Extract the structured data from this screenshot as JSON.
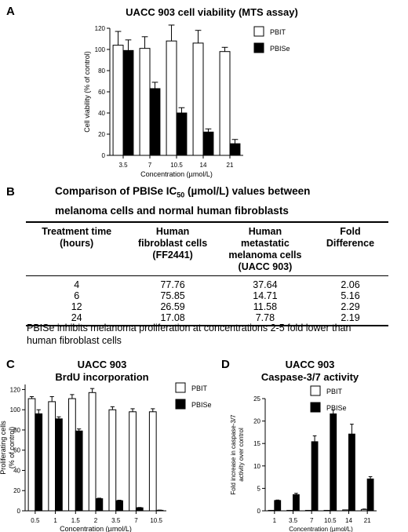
{
  "panels": {
    "A": {
      "letter": "A",
      "title": "UACC 903 cell viability (MTS assay)"
    },
    "B": {
      "letter": "B",
      "title_line1_pre": "Comparison of PBISe IC",
      "title_sub": "50",
      "title_line1_post": " (µmol/L) values between",
      "title_line2": "melanoma cells and normal human fibroblasts"
    },
    "C": {
      "letter": "C",
      "title_line1": "UACC 903",
      "title_line2": "BrdU incorporation"
    },
    "D": {
      "letter": "D",
      "title_line1": "UACC 903",
      "title_line2": "Caspase-3/7 activity"
    }
  },
  "table": {
    "headers": [
      [
        "Treatment time",
        "(hours)"
      ],
      [
        "Human",
        "fibroblast cells",
        "(FF2441)"
      ],
      [
        "Human",
        "metastatic",
        "melanoma cells",
        "(UACC 903)"
      ],
      [
        "Fold",
        "Difference"
      ]
    ],
    "rows": [
      [
        "4",
        "77.76",
        "37.64",
        "2.06"
      ],
      [
        "6",
        "75.85",
        "14.71",
        "5.16"
      ],
      [
        "12",
        "26.59",
        "11.58",
        "2.29"
      ],
      [
        "24",
        "17.08",
        "7.78",
        "2.19"
      ]
    ],
    "note": "PBISe inhibits melanoma proliferation at concentrations 2-5 fold lower than human fibroblast cells"
  },
  "colors": {
    "pbit": "#ffffff",
    "pbise": "#000000",
    "axis": "#000000"
  },
  "chart_data": [
    {
      "id": "A",
      "type": "bar",
      "categories": [
        "3.5",
        "7",
        "10.5",
        "14",
        "21"
      ],
      "series": [
        {
          "name": "PBIT",
          "values": [
            104,
            101,
            108,
            106,
            98
          ],
          "errors": [
            13,
            11,
            15,
            12,
            4
          ]
        },
        {
          "name": "PBISe",
          "values": [
            99,
            63,
            40,
            22,
            11
          ],
          "errors": [
            10,
            6,
            5,
            3,
            4
          ]
        }
      ],
      "xlabel": "Concentration (µmol/L)",
      "ylabel": "Cell viability (% of control)",
      "ylim": [
        0,
        120
      ],
      "yticks": [
        0,
        20,
        40,
        60,
        80,
        100,
        120
      ],
      "legend": "top-right",
      "grid": false
    },
    {
      "id": "C",
      "type": "bar",
      "categories": [
        "0.5",
        "1",
        "1.5",
        "2",
        "3.5",
        "7",
        "10.5"
      ],
      "series": [
        {
          "name": "PBIT",
          "values": [
            111,
            108,
            111,
            117,
            100,
            98,
            98
          ],
          "errors": [
            2,
            5,
            4,
            4,
            3,
            3,
            3
          ]
        },
        {
          "name": "PBISe",
          "values": [
            96,
            91,
            79,
            12,
            10,
            3,
            0.5
          ],
          "errors": [
            4,
            2,
            2,
            0.5,
            0.5,
            0.3,
            0.2
          ]
        }
      ],
      "xlabel": "Concentration (µmol/L)",
      "ylabel_line1": "Proliferating cells",
      "ylabel_line2": "(% of control)",
      "ylim": [
        0,
        125
      ],
      "yticks": [
        0,
        20,
        40,
        60,
        80,
        100,
        120
      ],
      "legend": "top-right",
      "grid": false
    },
    {
      "id": "D",
      "type": "bar",
      "categories": [
        "1",
        "3.5",
        "7",
        "10.5",
        "14",
        "21"
      ],
      "series": [
        {
          "name": "PBIT",
          "values": [
            0.1,
            0.1,
            0.1,
            0.1,
            0.2,
            0.3
          ],
          "errors": [
            0,
            0,
            0,
            0,
            0,
            0.1
          ]
        },
        {
          "name": "PBISe",
          "values": [
            2.3,
            3.6,
            15.4,
            21.6,
            17.1,
            7.1
          ],
          "errors": [
            0.1,
            0.3,
            1.3,
            0.9,
            2.2,
            0.5
          ]
        }
      ],
      "xlabel": "Concentration (µmol/L)",
      "ylabel_line1": "Fold increase in caspase-3/7",
      "ylabel_line2": "activity over control",
      "ylim": [
        0,
        25
      ],
      "yticks": [
        0,
        5,
        10,
        15,
        20,
        25
      ],
      "legend": "top-right",
      "grid": false
    }
  ]
}
